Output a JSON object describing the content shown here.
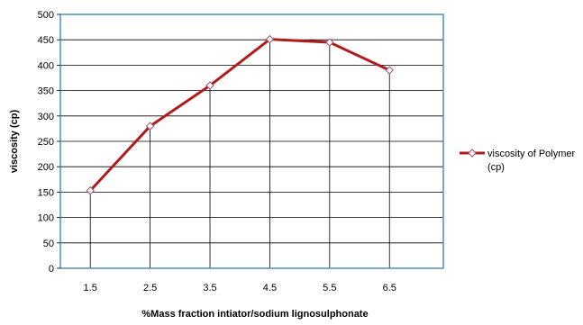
{
  "chart_data": {
    "type": "line",
    "title": "",
    "xlabel": "%Mass fraction intiator/sodium lignosulphonate",
    "ylabel": "viscosity (cp)",
    "categories": [
      "1.5",
      "2.5",
      "3.5",
      "4.5",
      "5.5",
      "6.5"
    ],
    "series": [
      {
        "name": "viscosity of Polymer (cp)",
        "values": [
          153,
          280,
          360,
          451,
          445,
          390
        ],
        "color": "#b01c1c",
        "marker": "diamond"
      }
    ],
    "ylim": [
      0,
      500
    ],
    "yticks": [
      "0",
      "50",
      "100",
      "150",
      "200",
      "250",
      "300",
      "350",
      "400",
      "450",
      "500"
    ],
    "grid": "horizontal",
    "drop_lines": true,
    "legend": {
      "position": "right",
      "lines": [
        "viscosity of Polymer",
        "(cp)"
      ]
    },
    "colors": {
      "plot_border": "#4a90b8",
      "gridline": "#000000",
      "series": "#b01c1c",
      "marker_fill": "#ffffff",
      "marker_stroke": "#a05070"
    }
  }
}
